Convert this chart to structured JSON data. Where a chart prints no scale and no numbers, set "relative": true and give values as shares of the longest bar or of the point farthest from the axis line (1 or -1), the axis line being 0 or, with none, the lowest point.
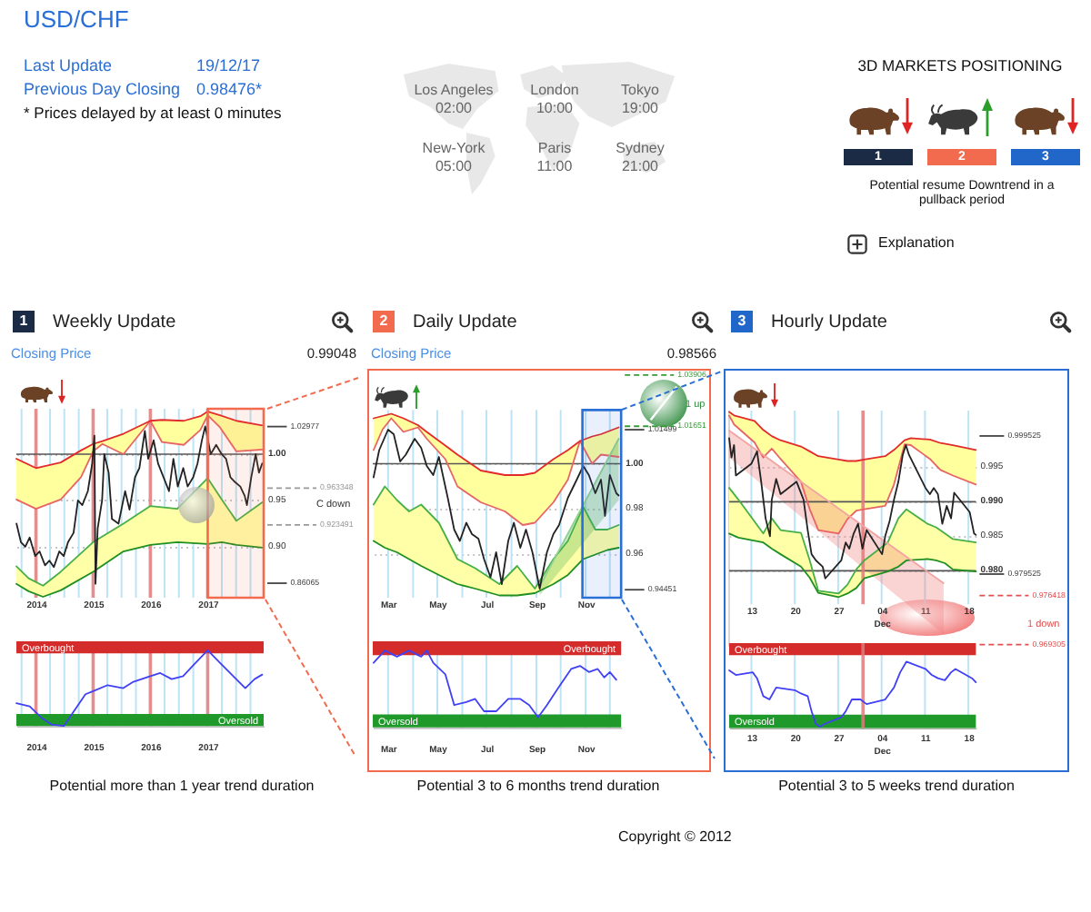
{
  "chart_data": [
    {
      "type": "other",
      "title": "USD/CHF",
      "annotations": [
        "Last Update",
        "19/12/17",
        "Previous Day Closing",
        "0.98476*",
        "* Prices delayed by at least 0 minutes",
        "Copyright © 2012"
      ]
    },
    {
      "type": "other",
      "annotations": [
        "Los Angeles",
        "02:00",
        "London",
        "10:00",
        "Tokyo",
        "19:00",
        "New-York",
        "05:00",
        "Paris",
        "11:00",
        "Sydney",
        "21:00"
      ]
    },
    {
      "type": "other",
      "title": "3D MARKETS POSITIONING",
      "annotations": [
        "1",
        "2",
        "3",
        "Potential resume Downtrend in a pullback period",
        "Explanation"
      ]
    },
    {
      "type": "line",
      "title": "Weekly Update",
      "subtitle": "Closing Price",
      "annotations": [
        "1",
        "0.99048",
        "C down"
      ],
      "xlim": [
        "2013-08-29",
        "2017-12-24"
      ],
      "xticks": [
        {
          "value": "2013-10",
          "label": null
        },
        {
          "value": "2014",
          "label": "2014"
        },
        {
          "value": "2014-04",
          "label": null
        },
        {
          "value": "2014-07",
          "label": null
        },
        {
          "value": "2014-10",
          "label": null
        },
        {
          "value": "2015",
          "label": "2015"
        },
        {
          "value": "2015-04",
          "label": null
        },
        {
          "value": "2015-07",
          "label": null
        },
        {
          "value": "2015-10",
          "label": null
        },
        {
          "value": "2016",
          "label": "2016"
        },
        {
          "value": "2016-04",
          "label": null
        },
        {
          "value": "2016-07",
          "label": null
        },
        {
          "value": "2016-10",
          "label": null
        },
        {
          "value": "2017",
          "label": "2017"
        },
        {
          "value": "2017-04",
          "label": null
        },
        {
          "value": "2017-07",
          "label": null
        },
        {
          "value": "2017-10",
          "label": null
        }
      ],
      "ylim": [
        0.845,
        1.049
      ],
      "yticks": [
        {
          "value": 1,
          "label": "1.00"
        },
        0.95,
        {
          "value": 0.9,
          "label": "0.90"
        }
      ],
      "grid": true,
      "series": [
        {
          "color": "#e86464",
          "x": [
            "2013-08-29",
            "2014-01-01",
            "2014-06-08",
            "2014-10-15",
            "2015-01-01",
            "2015-03-01",
            "2015-07-13",
            "2016-01-01",
            "2016-03-15",
            "2016-08-01",
            "2016-11-15",
            "2017-01-01",
            "2017-03-20",
            "2017-07-03",
            "2017-12-15"
          ],
          "values": [
            0.951,
            0.941,
            0.951,
            0.975,
            1.003,
            1.011,
            1.0,
            1.036,
            1.013,
            1.01,
            1.026,
            1.042,
            1.029,
            1.003,
            1.005
          ],
          "lower": [
            0.951,
            0.941,
            0.951,
            0.975,
            1.003,
            1.011,
            1.0,
            1.036,
            1.013,
            1.01,
            1.026,
            1.042,
            1.029,
            1.003,
            1.005
          ],
          "upper": [
            0.995,
            0.985,
            0.991,
            1.004,
            1.011,
            1.014,
            1.022,
            1.036,
            1.037,
            1.036,
            1.041,
            1.046,
            1.042,
            1.036,
            1.031
          ]
        },
        {
          "color": "#e22a2a",
          "x": [
            "2013-08-29",
            "2014-01-01",
            "2014-06-08",
            "2014-10-15",
            "2015-01-01",
            "2015-03-01",
            "2015-07-13",
            "2016-01-01",
            "2016-03-15",
            "2016-08-01",
            "2016-11-15",
            "2017-01-01",
            "2017-03-20",
            "2017-07-03",
            "2017-12-15"
          ],
          "values": [
            0.995,
            0.985,
            0.991,
            1.004,
            1.011,
            1.014,
            1.022,
            1.036,
            1.037,
            1.036,
            1.041,
            1.046,
            1.042,
            1.036,
            1.031
          ]
        },
        {
          "color": "#46b046",
          "x": [
            "2013-08-29",
            "2013-11-15",
            "2014-02-15",
            "2014-06-08",
            "2015-01-01",
            "2015-07-13",
            "2016-01-01",
            "2016-06-21",
            "2017-01-01",
            "2017-04-01",
            "2017-07-03",
            "2017-12-15"
          ],
          "values": [
            0.879,
            0.866,
            0.858,
            0.873,
            0.905,
            0.925,
            0.944,
            0.941,
            0.974,
            0.951,
            0.928,
            0.948
          ],
          "lower": [
            0.86,
            0.852,
            0.846,
            0.853,
            0.873,
            0.895,
            0.902,
            0.905,
            0.903,
            0.905,
            0.902,
            0.899
          ],
          "upper": [
            0.879,
            0.866,
            0.858,
            0.873,
            0.905,
            0.925,
            0.944,
            0.941,
            0.974,
            0.951,
            0.928,
            0.948
          ]
        },
        {
          "color": "#1f8f1f",
          "x": [
            "2013-08-29",
            "2013-11-15",
            "2014-02-15",
            "2014-06-08",
            "2015-01-01",
            "2015-07-13",
            "2016-01-01",
            "2016-06-21",
            "2017-01-01",
            "2017-04-01",
            "2017-07-03",
            "2017-12-15"
          ],
          "values": [
            0.86,
            0.852,
            0.846,
            0.853,
            0.873,
            0.895,
            0.902,
            0.905,
            0.903,
            0.905,
            0.902,
            0.899
          ]
        },
        {
          "color": "#222222",
          "x": [
            "2013-08-30",
            "2013-09-27",
            "2013-10-25",
            "2013-11-22",
            "2013-12-27",
            "2014-01-24",
            "2014-02-28",
            "2014-03-28",
            "2014-04-25",
            "2014-05-30",
            "2014-06-27",
            "2014-07-25",
            "2014-08-29",
            "2014-09-26",
            "2014-10-24",
            "2014-11-28",
            "2014-12-26",
            "2015-01-09",
            "2015-01-16",
            "2015-01-30",
            "2015-02-27",
            "2015-03-13",
            "2015-04-10",
            "2015-05-01",
            "2015-06-12",
            "2015-07-24",
            "2015-08-21",
            "2015-09-25",
            "2015-10-23",
            "2015-11-27",
            "2015-12-18",
            "2016-01-22",
            "2016-02-19",
            "2016-03-25",
            "2016-04-29",
            "2016-05-27",
            "2016-06-24",
            "2016-07-29",
            "2016-08-26",
            "2016-09-30",
            "2016-10-28",
            "2016-11-25",
            "2016-12-16",
            "2017-01-20",
            "2017-02-24",
            "2017-03-31",
            "2017-04-28",
            "2017-05-26",
            "2017-06-23",
            "2017-07-28",
            "2017-08-25",
            "2017-09-08",
            "2017-10-06",
            "2017-11-03",
            "2017-11-24",
            "2017-12-15"
          ],
          "values": [
            0.925,
            0.905,
            0.9,
            0.91,
            0.89,
            0.895,
            0.88,
            0.885,
            0.878,
            0.895,
            0.89,
            0.905,
            0.915,
            0.95,
            0.945,
            0.96,
            0.99,
            1.02,
            0.86,
            0.92,
            0.95,
            1.0,
            0.98,
            0.93,
            0.925,
            0.96,
            0.94,
            0.975,
            0.985,
            1.025,
            0.995,
            1.015,
            0.99,
            0.975,
            0.96,
            0.995,
            0.965,
            0.985,
            0.965,
            0.975,
            0.99,
            1.015,
            1.03,
            1.0,
            1.01,
            1.0,
            0.995,
            0.975,
            0.97,
            0.965,
            0.955,
            0.945,
            0.975,
            1.0,
            0.98,
            0.99
          ]
        }
      ],
      "ref_lines": [
        {
          "axis": "y",
          "value": 1,
          "color": "#555555"
        },
        {
          "axis": "y",
          "value": 1.02977,
          "label": "1.02977",
          "color": "#444444"
        },
        {
          "axis": "y",
          "value": 0.963348,
          "label": "0.963348",
          "color": "#999999",
          "line_style": "dashed"
        },
        {
          "axis": "y",
          "value": 0.923491,
          "label": "0.923491",
          "color": "#999999",
          "line_style": "dashed"
        },
        {
          "axis": "y",
          "value": 0.86065,
          "label": "0.86065",
          "color": "#444444"
        }
      ],
      "bands": [
        {
          "axis": "x",
          "from": "2017",
          "to": "2017-12-24",
          "color": "#f26b4f"
        }
      ]
    },
    {
      "type": "line",
      "relative": true,
      "annotations": [
        "Potential more than 1 year trend duration"
      ],
      "xlim": [
        "2013-08-29",
        "2017-12-24"
      ],
      "xticks": [
        {
          "value": "2013-10",
          "label": null
        },
        {
          "value": "2014",
          "label": "2014"
        },
        {
          "value": "2014-04",
          "label": null
        },
        {
          "value": "2014-07",
          "label": null
        },
        {
          "value": "2014-10",
          "label": null
        },
        {
          "value": "2015",
          "label": "2015"
        },
        {
          "value": "2015-04",
          "label": null
        },
        {
          "value": "2015-07",
          "label": null
        },
        {
          "value": "2015-10",
          "label": null
        },
        {
          "value": "2016",
          "label": "2016"
        },
        {
          "value": "2016-04",
          "label": null
        },
        {
          "value": "2016-07",
          "label": null
        },
        {
          "value": "2016-10",
          "label": null
        },
        {
          "value": "2017",
          "label": "2017"
        },
        {
          "value": "2017-04",
          "label": null
        },
        {
          "value": "2017-07",
          "label": null
        },
        {
          "value": "2017-10",
          "label": null
        }
      ],
      "grid": "x",
      "series": [
        {
          "color": "#4040f5",
          "x": [
            "2013-08-29",
            "2013-11-22",
            "2014-02-10",
            "2014-04-10",
            "2014-06-28",
            "2014-08-26",
            "2014-11-13",
            "2015-01-01",
            "2015-04-03",
            "2015-07-12",
            "2015-09-10",
            "2016-01-01",
            "2016-03-04",
            "2016-05-16",
            "2016-07-28",
            "2016-10-09",
            "2017-01-01",
            "2017-03-27",
            "2017-06-13",
            "2017-08-29",
            "2017-10-27",
            "2017-12-15"
          ],
          "values": [
            0.3,
            0.26,
            0.1,
            0.02,
            0,
            0.18,
            0.42,
            0.46,
            0.54,
            0.5,
            0.58,
            0.66,
            0.7,
            0.62,
            0.66,
            0.82,
            1,
            0.82,
            0.66,
            0.5,
            0.62,
            0.68
          ]
        }
      ],
      "bands": [
        {
          "axis": "y",
          "from": 0.96,
          "to": 1.12,
          "label": "Overbought",
          "color": "#d42b2b"
        },
        {
          "axis": "y",
          "from": 0,
          "to": 0.16,
          "label": "Oversold",
          "color": "#1f9a2a"
        }
      ]
    },
    {
      "type": "line",
      "title": "Daily Update",
      "subtitle": "Closing Price",
      "annotations": [
        "2",
        "0.98566",
        "1 up"
      ],
      "xlim": [
        "2017-02-10",
        "2017-12-15"
      ],
      "xticks": [
        {
          "value": "2017-03",
          "label": "Mar"
        },
        {
          "value": "2017-04",
          "label": null
        },
        {
          "value": "2017-05",
          "label": "May"
        },
        {
          "value": "2017-06",
          "label": null
        },
        {
          "value": "2017-07",
          "label": "Jul"
        },
        {
          "value": "2017-08",
          "label": null
        },
        {
          "value": "2017-09",
          "label": "Sep"
        },
        {
          "value": "2017-10",
          "label": null
        },
        {
          "value": "2017-11",
          "label": "Nov"
        },
        {
          "value": "2017-12",
          "label": null
        }
      ],
      "ylim": [
        0.941,
        1.041
      ],
      "yticks": [
        {
          "value": 1,
          "label": "1.00"
        },
        0.98,
        0.96
      ],
      "grid": true,
      "series": [
        {
          "color": "#e86464",
          "x": [
            "2017-02-11",
            "2017-02-22",
            "2017-03-05",
            "2017-03-20",
            "2017-04-07",
            "2017-04-18",
            "2017-05-11",
            "2017-05-26",
            "2017-06-24",
            "2017-07-24",
            "2017-08-15",
            "2017-08-30",
            "2017-09-22",
            "2017-10-10",
            "2017-10-25",
            "2017-11-09",
            "2017-11-20",
            "2017-12-12"
          ],
          "values": [
            1.006,
            1.015,
            1.02,
            1.014,
            1.016,
            1.011,
            1.002,
            0.99,
            0.983,
            0.979,
            0.973,
            0.974,
            0.983,
            0.993,
            1.01,
            1.0,
            1.004,
            1.003
          ],
          "lower": [
            1.006,
            1.015,
            1.02,
            1.014,
            1.016,
            1.011,
            1.002,
            0.99,
            0.983,
            0.979,
            0.973,
            0.974,
            0.983,
            0.993,
            1.01,
            1.0,
            1.004,
            1.003
          ],
          "upper": [
            1.02,
            1.021,
            1.022,
            1.02,
            1.017,
            1.014,
            1.008,
            1.004,
            0.997,
            0.995,
            0.995,
            0.996,
            1.002,
            1.006,
            1.01,
            1.012,
            1.013,
            1.016
          ]
        },
        {
          "color": "#e22a2a",
          "x": [
            "2017-02-11",
            "2017-02-22",
            "2017-03-05",
            "2017-03-20",
            "2017-04-07",
            "2017-04-18",
            "2017-05-11",
            "2017-05-26",
            "2017-06-24",
            "2017-07-24",
            "2017-08-15",
            "2017-08-30",
            "2017-09-22",
            "2017-10-10",
            "2017-10-25",
            "2017-11-09",
            "2017-11-20",
            "2017-12-12"
          ],
          "values": [
            1.02,
            1.021,
            1.022,
            1.02,
            1.017,
            1.014,
            1.008,
            1.004,
            0.997,
            0.995,
            0.995,
            0.996,
            1.002,
            1.006,
            1.01,
            1.012,
            1.013,
            1.016
          ]
        },
        {
          "color": "#46b046",
          "x": [
            "2017-02-11",
            "2017-02-25",
            "2017-03-12",
            "2017-03-27",
            "2017-04-11",
            "2017-05-03",
            "2017-05-26",
            "2017-06-17",
            "2017-07-17",
            "2017-08-08",
            "2017-08-30",
            "2017-09-22",
            "2017-10-10",
            "2017-10-29",
            "2017-11-13",
            "2017-11-28",
            "2017-12-12"
          ],
          "values": [
            0.982,
            0.99,
            0.984,
            0.979,
            0.982,
            0.974,
            0.958,
            0.954,
            0.947,
            0.955,
            0.945,
            0.958,
            0.966,
            0.981,
            0.971,
            0.971,
            0.973
          ],
          "lower": [
            0.966,
            0.963,
            0.961,
            0.958,
            0.955,
            0.951,
            0.947,
            0.945,
            0.942,
            0.942,
            0.943,
            0.947,
            0.951,
            0.958,
            0.96,
            0.962,
            0.963
          ],
          "upper": [
            0.982,
            0.99,
            0.984,
            0.979,
            0.982,
            0.974,
            0.958,
            0.954,
            0.947,
            0.955,
            0.945,
            0.958,
            0.966,
            0.981,
            0.971,
            0.971,
            0.973
          ]
        },
        {
          "color": "#1f8f1f",
          "x": [
            "2017-02-11",
            "2017-02-25",
            "2017-03-12",
            "2017-03-27",
            "2017-04-11",
            "2017-05-03",
            "2017-05-26",
            "2017-06-17",
            "2017-07-17",
            "2017-08-08",
            "2017-08-30",
            "2017-09-22",
            "2017-10-10",
            "2017-10-29",
            "2017-11-13",
            "2017-11-28",
            "2017-12-12"
          ],
          "values": [
            0.966,
            0.963,
            0.961,
            0.958,
            0.955,
            0.951,
            0.947,
            0.945,
            0.942,
            0.942,
            0.943,
            0.947,
            0.951,
            0.958,
            0.96,
            0.962,
            0.963
          ]
        },
        {
          "color": "#8fd18f",
          "x": [
            "2017-09-05",
            "2017-12-12"
          ],
          "values": [
            0.946,
            1.011
          ],
          "lower": [
            0.942,
            0.984
          ],
          "upper": [
            0.946,
            1.011
          ]
        },
        {
          "color": "#222222",
          "x": [
            "2017-02-11",
            "2017-02-18",
            "2017-03-01",
            "2017-03-08",
            "2017-03-16",
            "2017-03-23",
            "2017-04-03",
            "2017-04-11",
            "2017-04-18",
            "2017-04-26",
            "2017-05-03",
            "2017-05-14",
            "2017-05-22",
            "2017-05-29",
            "2017-06-06",
            "2017-06-13",
            "2017-06-21",
            "2017-06-28",
            "2017-07-06",
            "2017-07-13",
            "2017-07-20",
            "2017-07-28",
            "2017-08-04",
            "2017-08-12",
            "2017-08-19",
            "2017-08-27",
            "2017-09-05",
            "2017-09-14",
            "2017-09-22",
            "2017-09-29",
            "2017-10-10",
            "2017-10-21",
            "2017-10-29",
            "2017-11-05",
            "2017-11-13",
            "2017-11-20",
            "2017-11-25",
            "2017-12-01",
            "2017-12-09",
            "2017-12-12"
          ],
          "values": [
            0.994,
            1.006,
            1.015,
            1.013,
            1.001,
            1.004,
            1.011,
            1.007,
            0.999,
            0.995,
            1.003,
            0.985,
            0.971,
            0.966,
            0.974,
            0.969,
            0.967,
            0.958,
            0.95,
            0.961,
            0.947,
            0.966,
            0.974,
            0.963,
            0.971,
            0.961,
            0.945,
            0.961,
            0.969,
            0.973,
            0.985,
            0.993,
            0.999,
            0.995,
            0.987,
            0.993,
            0.977,
            0.995,
            0.987,
            0.986
          ]
        }
      ],
      "ref_lines": [
        {
          "axis": "y",
          "value": 1,
          "color": "#555555"
        },
        {
          "axis": "y",
          "value": 1.03906,
          "label": "1.03906",
          "color": "#3a9a3a",
          "line_style": "dashed"
        },
        {
          "axis": "y",
          "value": 1.01499,
          "label": "1.01499",
          "color": "#444444"
        },
        {
          "axis": "y",
          "value": 1.01651,
          "label": "1.01651",
          "color": "#3a9a3a",
          "line_style": "dashed"
        },
        {
          "axis": "y",
          "value": 0.94451,
          "label": "0.94451",
          "color": "#444444"
        }
      ],
      "bands": [
        {
          "axis": "x",
          "from": "2017-10-28",
          "to": "2017-12-15",
          "color": "#2a6fd6"
        }
      ]
    },
    {
      "type": "line",
      "relative": true,
      "annotations": [
        "Potential 3 to 6 months trend duration"
      ],
      "xlim": [
        "2017-02-10",
        "2017-12-15"
      ],
      "xticks": [
        {
          "value": "2017-03",
          "label": "Mar"
        },
        {
          "value": "2017-04",
          "label": null
        },
        {
          "value": "2017-05",
          "label": "May"
        },
        {
          "value": "2017-06",
          "label": null
        },
        {
          "value": "2017-07",
          "label": "Jul"
        },
        {
          "value": "2017-08",
          "label": null
        },
        {
          "value": "2017-09",
          "label": "Sep"
        },
        {
          "value": "2017-10",
          "label": null
        },
        {
          "value": "2017-11",
          "label": "Nov"
        },
        {
          "value": "2017-12",
          "label": null
        }
      ],
      "grid": "x",
      "series": [
        {
          "color": "#4040f5",
          "x": [
            "2017-02-11",
            "2017-02-25",
            "2017-03-12",
            "2017-03-27",
            "2017-04-11",
            "2017-04-18",
            "2017-04-26",
            "2017-05-11",
            "2017-05-22",
            "2017-06-06",
            "2017-06-17",
            "2017-06-28",
            "2017-07-13",
            "2017-07-28",
            "2017-08-12",
            "2017-08-23",
            "2017-09-03",
            "2017-09-14",
            "2017-09-29",
            "2017-10-14",
            "2017-10-25",
            "2017-11-05",
            "2017-11-16",
            "2017-11-24",
            "2017-12-01",
            "2017-12-09"
          ],
          "values": [
            0.84,
            1,
            0.92,
            1,
            0.92,
            1,
            0.84,
            0.69,
            0.29,
            0.33,
            0.37,
            0.21,
            0.21,
            0.37,
            0.37,
            0.29,
            0.13,
            0.29,
            0.53,
            0.76,
            0.8,
            0.72,
            0.76,
            0.65,
            0.72,
            0.62
          ]
        }
      ],
      "bands": [
        {
          "axis": "y",
          "from": 0.94,
          "to": 1.12,
          "label": "Overbought",
          "color": "#d42b2b"
        },
        {
          "axis": "y",
          "from": 0,
          "to": 0.17,
          "label": "Oversold",
          "color": "#1f9a2a"
        }
      ]
    },
    {
      "type": "line",
      "title": "Hourly Update",
      "annotations": [
        "3",
        "1 down"
      ],
      "xlim": [
        "2017-11-09T10:00",
        "2017-12-19T05:00"
      ],
      "xticks": [
        {
          "value": "2017-11-13",
          "label": "13"
        },
        {
          "value": "2017-11-20",
          "label": "20"
        },
        {
          "value": "2017-11-27",
          "label": "27"
        },
        {
          "value": "2017-12-04",
          "label": "04\nDec"
        },
        {
          "value": "2017-12-11",
          "label": "11"
        },
        {
          "value": "2017-12-18",
          "label": "18"
        }
      ],
      "ylim": [
        0.969,
        1.0032
      ],
      "yticks": [
        0.995,
        {
          "value": 0.99,
          "label": "0.990"
        },
        0.985,
        {
          "value": 0.98,
          "label": "0.980"
        }
      ],
      "grid": true,
      "series": [
        {
          "color": "#e86464",
          "x": [
            "2017-11-09T10:00",
            "2017-11-10T05:00",
            "2017-11-13T12:00",
            "2017-11-14T22:00",
            "2017-11-16T07:00",
            "2017-11-17T17:00",
            "2017-11-21T00:00",
            "2017-11-22T10:00",
            "2017-11-23T19:00",
            "2017-11-27T02:00",
            "2017-11-28T12:00",
            "2017-11-29T22:00",
            "2017-12-01T05:00",
            "2017-12-04T14:00",
            "2017-12-06T00:00",
            "2017-12-07T17:00",
            "2017-12-08T17:00",
            "2017-12-11T19:00",
            "2017-12-13T12:00",
            "2017-12-15T12:00",
            "2017-12-19T05:00"
          ],
          "values": [
            1.0025,
            1.0012,
            0.9986,
            0.9964,
            0.9977,
            0.9962,
            0.9929,
            0.9889,
            0.9859,
            0.9854,
            0.9875,
            0.9887,
            0.9889,
            0.9894,
            0.9925,
            0.9983,
            0.9982,
            0.9962,
            0.9946,
            0.9938,
            0.9925
          ],
          "lower": [
            1.0025,
            1.0012,
            0.9986,
            0.9964,
            0.9977,
            0.9962,
            0.9929,
            0.9889,
            0.9859,
            0.9854,
            0.9875,
            0.9887,
            0.9889,
            0.9894,
            0.9925,
            0.9983,
            0.9982,
            0.9962,
            0.9946,
            0.9938,
            0.9925
          ],
          "upper": [
            1.003,
            1.0025,
            1.0017,
            1.0004,
            0.9995,
            0.9989,
            0.998,
            0.9973,
            0.9966,
            0.9961,
            0.9959,
            0.9959,
            0.9961,
            0.9966,
            0.9975,
            0.9989,
            0.9992,
            0.999,
            0.9985,
            0.9982,
            0.9975
          ]
        },
        {
          "color": "#e22a2a",
          "x": [
            "2017-11-09T10:00",
            "2017-11-10T05:00",
            "2017-11-13T12:00",
            "2017-11-14T22:00",
            "2017-11-16T07:00",
            "2017-11-17T17:00",
            "2017-11-21T00:00",
            "2017-11-22T10:00",
            "2017-11-23T19:00",
            "2017-11-27T02:00",
            "2017-11-28T12:00",
            "2017-11-29T22:00",
            "2017-12-01T05:00",
            "2017-12-04T14:00",
            "2017-12-06T00:00",
            "2017-12-07T17:00",
            "2017-12-08T17:00",
            "2017-12-11T19:00",
            "2017-12-13T12:00",
            "2017-12-15T12:00",
            "2017-12-19T05:00"
          ],
          "values": [
            1.003,
            1.0025,
            1.0017,
            1.0004,
            0.9995,
            0.9989,
            0.998,
            0.9973,
            0.9966,
            0.9961,
            0.9959,
            0.9959,
            0.9961,
            0.9966,
            0.9975,
            0.9989,
            0.9992,
            0.999,
            0.9985,
            0.9982,
            0.9975
          ]
        },
        {
          "color": "#46b046",
          "x": [
            "2017-11-09T10:00",
            "2017-11-10T22:00",
            "2017-11-14T22:00",
            "2017-11-16T07:00",
            "2017-11-17T17:00",
            "2017-11-21T00:00",
            "2017-11-22T10:00",
            "2017-11-23T19:00",
            "2017-11-27T02:00",
            "2017-11-28T12:00",
            "2017-11-29T22:00",
            "2017-12-01T05:00",
            "2017-12-05T00:00",
            "2017-12-06T17:00",
            "2017-12-08T00:00",
            "2017-12-11T10:00",
            "2017-12-12T19:00",
            "2017-12-14T05:00",
            "2017-12-15T12:00",
            "2017-12-19T05:00"
          ],
          "values": [
            0.992,
            0.9903,
            0.9854,
            0.9876,
            0.9859,
            0.9855,
            0.9815,
            0.9771,
            0.9767,
            0.978,
            0.9802,
            0.9815,
            0.9841,
            0.9876,
            0.9889,
            0.9868,
            0.9863,
            0.9854,
            0.9846,
            0.9841
          ],
          "lower": [
            0.9854,
            0.9848,
            0.9841,
            0.9832,
            0.9824,
            0.9806,
            0.979,
            0.9768,
            0.9762,
            0.9767,
            0.9775,
            0.9789,
            0.9799,
            0.9806,
            0.9815,
            0.9817,
            0.9815,
            0.9811,
            0.9802,
            0.9799
          ],
          "upper": [
            0.992,
            0.9903,
            0.9854,
            0.9876,
            0.9859,
            0.9855,
            0.9815,
            0.9771,
            0.9767,
            0.978,
            0.9802,
            0.9815,
            0.9841,
            0.9876,
            0.9889,
            0.9868,
            0.9863,
            0.9854,
            0.9846,
            0.9841
          ]
        },
        {
          "color": "#1f8f1f",
          "x": [
            "2017-11-09T10:00",
            "2017-11-10T22:00",
            "2017-11-14T22:00",
            "2017-11-16T07:00",
            "2017-11-17T17:00",
            "2017-11-21T00:00",
            "2017-11-22T10:00",
            "2017-11-23T19:00",
            "2017-11-27T02:00",
            "2017-11-28T12:00",
            "2017-11-29T22:00",
            "2017-12-01T05:00",
            "2017-12-05T00:00",
            "2017-12-06T17:00",
            "2017-12-08T00:00",
            "2017-12-11T10:00",
            "2017-12-12T19:00",
            "2017-12-14T05:00",
            "2017-12-15T12:00",
            "2017-12-19T05:00"
          ],
          "values": [
            0.9854,
            0.9848,
            0.9841,
            0.9832,
            0.9824,
            0.9806,
            0.979,
            0.9768,
            0.9762,
            0.9767,
            0.9775,
            0.9789,
            0.9799,
            0.9806,
            0.9815,
            0.9817,
            0.9815,
            0.9811,
            0.9802,
            0.9799
          ]
        },
        {
          "color": "#f4a3a3",
          "x": [
            "2017-11-09T10:00",
            "2017-12-14T00:00"
          ],
          "values": [
            1.0003,
            0.9782
          ],
          "lower": [
            0.9964,
            0.9708
          ],
          "upper": [
            1.0003,
            0.9782
          ]
        },
        {
          "color": "#222222",
          "x": [
            "2017-11-09T10:00",
            "2017-11-09T19:00",
            "2017-11-10T05:00",
            "2017-11-10T12:00",
            "2017-11-13T00:00",
            "2017-11-13T22:00",
            "2017-11-14T14:00",
            "2017-11-15T07:00",
            "2017-11-16T00:00",
            "2017-11-16T07:00",
            "2017-11-17T00:00",
            "2017-11-17T17:00",
            "2017-11-20T07:00",
            "2017-11-21T10:00",
            "2017-11-22T02:00",
            "2017-11-22T17:00",
            "2017-11-23T10:00",
            "2017-11-24T12:00",
            "2017-11-24T22:00",
            "2017-11-27T12:00",
            "2017-11-28T05:00",
            "2017-11-28T19:00",
            "2017-11-29T12:00",
            "2017-11-30T05:00",
            "2017-11-30T22:00",
            "2017-12-01T14:00",
            "2017-12-04T02:00",
            "2017-12-04T14:00",
            "2017-12-05T07:00",
            "2017-12-06T00:00",
            "2017-12-06T17:00",
            "2017-12-07T10:00",
            "2017-12-07T22:00",
            "2017-12-08T10:00",
            "2017-12-11T02:00",
            "2017-12-11T19:00",
            "2017-12-12T10:00",
            "2017-12-13T02:00",
            "2017-12-13T19:00",
            "2017-12-14T12:00",
            "2017-12-15T05:00",
            "2017-12-15T17:00",
            "2017-12-18T05:00",
            "2017-12-18T22:00",
            "2017-12-19T05:00"
          ],
          "values": [
            0.9992,
            0.9964,
            0.9982,
            0.9938,
            0.9955,
            0.9973,
            0.9929,
            0.9876,
            0.985,
            0.9903,
            0.9933,
            0.9911,
            0.9929,
            0.9903,
            0.9859,
            0.9824,
            0.9815,
            0.9806,
            0.9789,
            0.9815,
            0.9841,
            0.9832,
            0.9854,
            0.9868,
            0.9832,
            0.9859,
            0.9824,
            0.985,
            0.9872,
            0.9903,
            0.9929,
            0.9968,
            0.9982,
            0.9968,
            0.992,
            0.9911,
            0.992,
            0.9911,
            0.9868,
            0.9894,
            0.9876,
            0.9913,
            0.9885,
            0.9854,
            0.9852
          ]
        }
      ],
      "ref_lines": [
        {
          "axis": "y",
          "value": 0.99,
          "color": "#555555"
        },
        {
          "axis": "y",
          "value": 0.98,
          "color": "#555555"
        },
        {
          "axis": "x",
          "value": "2017-12-01",
          "color": "#e07a7a"
        },
        {
          "axis": "y",
          "value": 0.999525,
          "label": "0.999525",
          "color": "#444444"
        },
        {
          "axis": "y",
          "value": 0.979525,
          "label": "0.979525",
          "color": "#444444"
        },
        {
          "axis": "y",
          "value": 0.976418,
          "label": "0.976418",
          "color": "#e05050",
          "line_style": "dashed"
        },
        {
          "axis": "y",
          "value": 0.969305,
          "label": "0.969305",
          "color": "#e05050",
          "line_style": "dashed"
        }
      ]
    },
    {
      "type": "line",
      "relative": true,
      "annotations": [
        "Potential 3 to 5 weeks trend duration"
      ],
      "xlim": [
        "2017-11-09T10:00",
        "2017-12-19T05:00"
      ],
      "xticks": [
        {
          "value": "2017-11-13",
          "label": "13"
        },
        {
          "value": "2017-11-20",
          "label": "20"
        },
        {
          "value": "2017-11-27",
          "label": "27"
        },
        {
          "value": "2017-12-04",
          "label": "04\nDec"
        },
        {
          "value": "2017-12-11",
          "label": "11"
        },
        {
          "value": "2017-12-18",
          "label": "18"
        }
      ],
      "grid": "x",
      "series": [
        {
          "color": "#4040f5",
          "x": [
            "2017-11-09T10:00",
            "2017-11-10T12:00",
            "2017-11-13T05:00",
            "2017-11-13T22:00",
            "2017-11-14T22:00",
            "2017-11-15T22:00",
            "2017-11-17T00:00",
            "2017-11-20T00:00",
            "2017-11-21T00:00",
            "2017-11-22T02:00",
            "2017-11-22T17:00",
            "2017-11-23T10:00",
            "2017-11-24T02:00",
            "2017-11-24T19:00",
            "2017-11-27T12:00",
            "2017-11-28T05:00",
            "2017-11-29T05:00",
            "2017-11-30T14:00",
            "2017-12-01T14:00",
            "2017-12-04T14:00",
            "2017-12-06T00:00",
            "2017-12-07T00:00",
            "2017-12-08T00:00",
            "2017-12-11T02:00",
            "2017-12-12T02:00",
            "2017-12-13T02:00",
            "2017-12-14T05:00",
            "2017-12-15T05:00",
            "2017-12-15T22:00",
            "2017-12-18T14:00",
            "2017-12-19T05:00"
          ],
          "values": [
            0.87,
            0.8,
            0.84,
            0.75,
            0.48,
            0.43,
            0.61,
            0.57,
            0.52,
            0.48,
            0.25,
            0.06,
            0.02,
            0.06,
            0.16,
            0.25,
            0.43,
            0.43,
            0.36,
            0.43,
            0.61,
            0.84,
            1,
            0.89,
            0.8,
            0.75,
            0.72,
            0.84,
            0.89,
            0.75,
            0.69
          ]
        }
      ],
      "ref_lines": [
        {
          "axis": "x",
          "value": "2017-12-01",
          "color": "#e07a7a"
        }
      ],
      "bands": [
        {
          "axis": "y",
          "from": 1.1,
          "to": 1.28,
          "label": "Overbought",
          "color": "#d42b2b"
        },
        {
          "axis": "y",
          "from": 0,
          "to": 0.2,
          "label": "Oversold",
          "color": "#1f9a2a"
        }
      ]
    }
  ]
}
